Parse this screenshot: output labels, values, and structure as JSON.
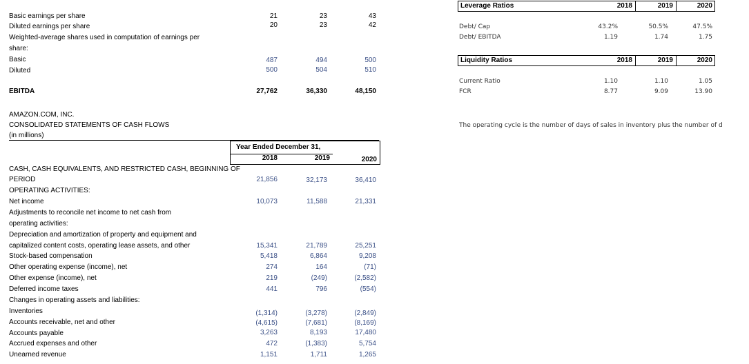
{
  "eps": {
    "basic_label": "Basic earnings per share",
    "diluted_label": "Diluted earnings per share",
    "weighted_label": "Weighted-average shares used in computation of earnings per",
    "weighted_label2": "share:",
    "basic_shares_label": "Basic",
    "diluted_shares_label": "Diluted",
    "basic_eps": [
      "21",
      "23",
      "43"
    ],
    "diluted_eps": [
      "20",
      "23",
      "42"
    ],
    "basic_shares": [
      "487",
      "494",
      "500"
    ],
    "diluted_shares": [
      "500",
      "504",
      "510"
    ]
  },
  "ebitda": {
    "label": "EBITDA",
    "values": [
      "27,762",
      "36,330",
      "48,150"
    ]
  },
  "cashflow": {
    "company": "AMAZON.COM, INC.",
    "title": "CONSOLIDATED STATEMENTS OF CASH FLOWS",
    "units": "(in millions)",
    "period_header": "Year Ended December 31,",
    "years": [
      "2018",
      "2019",
      "2020"
    ],
    "rows": {
      "beginning_label": "CASH, CASH EQUIVALENTS, AND RESTRICTED CASH, BEGINNING OF",
      "period_label": "PERIOD",
      "period_values": [
        "21,856",
        "32,173",
        "36,410"
      ],
      "operating_label": "OPERATING ACTIVITIES:",
      "net_income_label": "Net income",
      "net_income_values": [
        "10,073",
        "11,588",
        "21,331"
      ],
      "adjust_label": "Adjustments to reconcile net income to net cash from",
      "adjust_label2": "operating activities:",
      "dep_label": "Depreciation and amortization of property and equipment and",
      "dep_label2": "capitalized content costs, operating lease assets, and other",
      "dep_values": [
        "15,341",
        "21,789",
        "25,251"
      ],
      "sbc_label": "Stock-based compensation",
      "sbc_values": [
        "5,418",
        "6,864",
        "9,208"
      ],
      "opex_label": "Other operating expense (income), net",
      "opex_values": [
        "274",
        "164",
        "(71)"
      ],
      "oexp_label": "Other expense (income), net",
      "oexp_values": [
        "219",
        "(249)",
        "(2,582)"
      ],
      "dit_label": "Deferred income taxes",
      "dit_values": [
        "441",
        "796",
        "(554)"
      ],
      "changes_label": "Changes in operating assets and liabilities:",
      "inv_label": "Inventories",
      "inv_values": [
        "(1,314)",
        "(3,278)",
        "(2,849)"
      ],
      "ar_label": "Accounts receivable, net and other",
      "ar_values": [
        "(4,615)",
        "(7,681)",
        "(8,169)"
      ],
      "ap_label": "Accounts payable",
      "ap_values": [
        "3,263",
        "8,193",
        "17,480"
      ],
      "accr_label": "Accrued expenses and other",
      "accr_values": [
        "472",
        "(1,383)",
        "5,754"
      ],
      "unearned_label": "Unearned revenue",
      "unearned_values": [
        "1,151",
        "1,711",
        "1,265"
      ]
    }
  },
  "leverage": {
    "header": "Leverage Ratios",
    "years": [
      "2018",
      "2019",
      "2020"
    ],
    "debt_cap_label": "Debt/ Cap",
    "debt_cap_values": [
      "43.2%",
      "50.5%",
      "47.5%"
    ],
    "debt_ebitda_label": "Debt/ EBITDA",
    "debt_ebitda_values": [
      "1.19",
      "1.74",
      "1.75"
    ]
  },
  "liquidity": {
    "header": "Liquidity Ratios",
    "years": [
      "2018",
      "2019",
      "2020"
    ],
    "current_label": "Current Ratio",
    "current_values": [
      "1.10",
      "1.10",
      "1.05"
    ],
    "fcr_label": "FCR",
    "fcr_values": [
      "8.77",
      "9.09",
      "13.90"
    ]
  },
  "note": "The operating cycle is the number of days of sales in inventory plus the number of d"
}
